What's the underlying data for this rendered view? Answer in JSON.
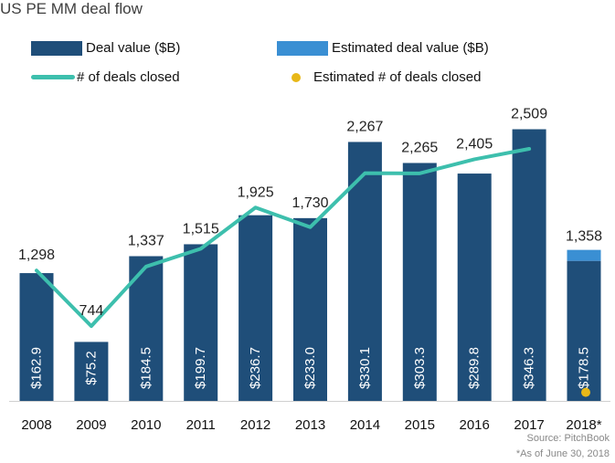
{
  "chart_data": {
    "type": "bar",
    "title": "US PE MM deal flow",
    "categories": [
      "2008",
      "2009",
      "2010",
      "2011",
      "2012",
      "2013",
      "2014",
      "2015",
      "2016",
      "2017",
      "2018*"
    ],
    "series": [
      {
        "name": "Deal value ($B)",
        "kind": "bar",
        "color": "#1f4e79",
        "values": [
          162.9,
          75.2,
          184.5,
          199.7,
          236.7,
          233.0,
          330.1,
          303.3,
          289.8,
          346.3,
          178.5
        ],
        "labels": [
          "$162.9",
          "$75.2",
          "$184.5",
          "$199.7",
          "$236.7",
          "$233.0",
          "$330.1",
          "$303.3",
          "$289.8",
          "$346.3",
          "$178.5"
        ]
      },
      {
        "name": "Estimated deal value ($B)",
        "kind": "bar-stack",
        "color": "#3a8fd3",
        "values": [
          null,
          null,
          null,
          null,
          null,
          null,
          null,
          null,
          null,
          null,
          14
        ]
      },
      {
        "name": "# of deals closed",
        "kind": "line",
        "color": "#3dbfad",
        "values": [
          1298,
          744,
          1337,
          1515,
          1925,
          1730,
          2267,
          2265,
          2405,
          2509,
          null
        ],
        "labels": [
          "1,298",
          "744",
          "1,337",
          "1,515",
          "1,925",
          "1,730",
          "2,267",
          "2,265",
          "2,405",
          "2,509",
          ""
        ]
      },
      {
        "name": "Estimated # of deals closed",
        "kind": "point",
        "color": "#e8b818",
        "values": [
          null,
          null,
          null,
          null,
          null,
          null,
          null,
          null,
          null,
          null,
          1358
        ],
        "labels": [
          "",
          "",
          "",
          "",
          "",
          "",
          "",
          "",
          "",
          "",
          "1,358"
        ]
      }
    ],
    "bar_axis": {
      "ylim": [
        0,
        400
      ],
      "ticks_visible": false
    },
    "line_axis": {
      "ylim": [
        0,
        3000
      ],
      "ticks_visible": false
    },
    "legend": "top",
    "grid": false
  },
  "footer": {
    "source": "Source: PitchBook",
    "note": "*As of June 30, 2018"
  }
}
